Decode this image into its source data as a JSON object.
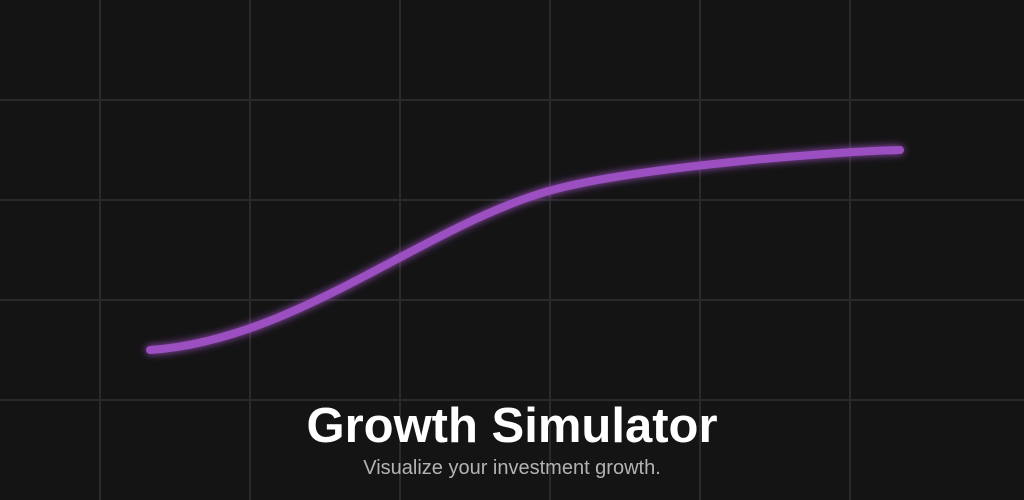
{
  "hero": {
    "title": "Growth Simulator",
    "subtitle": "Visualize your investment growth."
  },
  "colors": {
    "background": "#141414",
    "grid": "#2a2a2a",
    "curve": "#9b4fc0",
    "title": "#ffffff",
    "subtitle": "#b3b3b3"
  },
  "decoration": {
    "curve_shape": "s-curve-growth",
    "background_grid": true
  }
}
